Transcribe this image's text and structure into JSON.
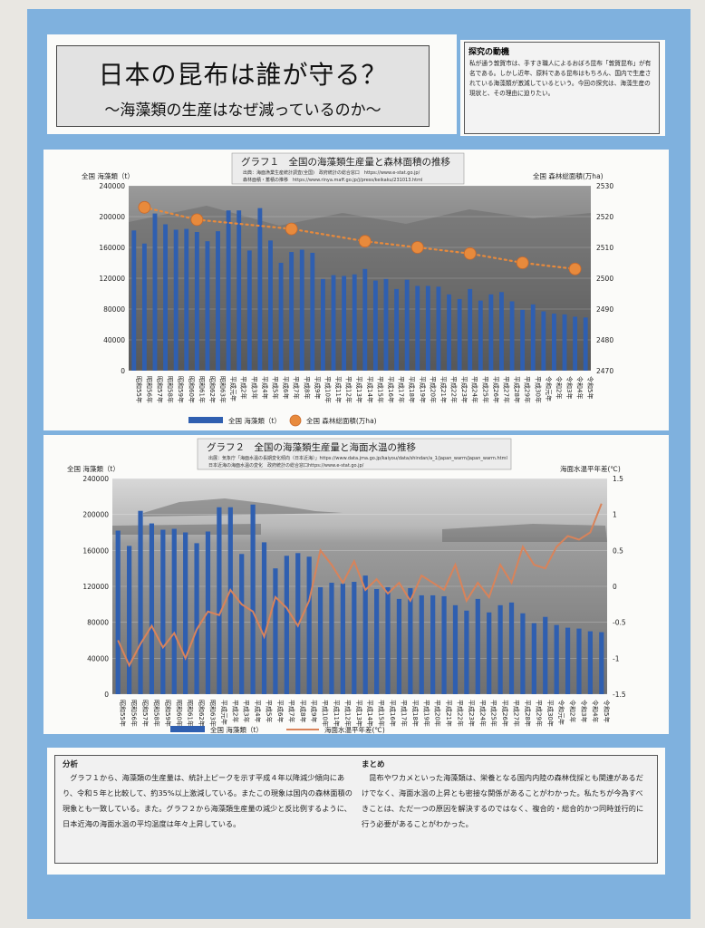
{
  "title": {
    "main": "日本の昆布は誰が守る？",
    "sub": "〜海藻類の生産はなぜ減っているのか〜"
  },
  "motive": {
    "heading": "探究の動機",
    "body": "私が通う敦賀市は、手すき職人によるおぼろ昆布「敦賀昆布」が有名である。しかし近年、原料である昆布はもちろん、国内で生産されている海藻類が激減しているという。今回の探究は、海藻生産の現状と、その理由に迫りたい。"
  },
  "categories": [
    "昭和55年",
    "昭和56年",
    "昭和57年",
    "昭和58年",
    "昭和59年",
    "昭和60年",
    "昭和61年",
    "昭和62年",
    "昭和63年",
    "平成元年",
    "平成2年",
    "平成3年",
    "平成4年",
    "平成5年",
    "平成6年",
    "平成7年",
    "平成8年",
    "平成9年",
    "平成10年",
    "平成11年",
    "平成12年",
    "平成13年",
    "平成14年",
    "平成15年",
    "平成16年",
    "平成17年",
    "平成18年",
    "平成19年",
    "平成20年",
    "平成21年",
    "平成22年",
    "平成23年",
    "平成24年",
    "平成25年",
    "平成26年",
    "平成27年",
    "平成28年",
    "平成29年",
    "平成30年",
    "令和元年",
    "令和2年",
    "令和3年",
    "令和4年",
    "令和5年"
  ],
  "chart_data": [
    {
      "type": "bar",
      "title": "グラフ１　全国の海藻類生産量と森林面積の推移",
      "source_lines": [
        "出典：海面漁業生産統計調査(全国)　政府統計の総合窓口　https://www.e-stat.go.jp/",
        "森林面積・蓄積の推移　https://www.rinya.maff.go.jp/j/press/keikaku/231013.html"
      ],
      "ylabel_left": "全国 海藻類（t）",
      "ylabel_right": "全国 森林総面積(万ha)",
      "ylim_left": [
        0,
        240000
      ],
      "ylim_right": [
        2470,
        2530
      ],
      "yticks_left": [
        "0",
        "40000",
        "80000",
        "120000",
        "160000",
        "200000",
        "240000"
      ],
      "yticks_right": [
        "2470",
        "2480",
        "2490",
        "2500",
        "2510",
        "2520",
        "2530"
      ],
      "series": [
        {
          "name": "全国 海藻類（t）",
          "kind": "bar",
          "color": "#2f5fb0",
          "values": [
            182000,
            165000,
            204000,
            190000,
            183000,
            184000,
            180000,
            168000,
            181000,
            208000,
            208000,
            156000,
            211000,
            169000,
            140000,
            154000,
            157000,
            153000,
            119000,
            124000,
            123000,
            125000,
            132000,
            117000,
            119000,
            106000,
            118000,
            110000,
            110000,
            109000,
            99000,
            93000,
            106000,
            91000,
            99000,
            102000,
            90000,
            79000,
            86000,
            77000,
            74000,
            73000,
            70000,
            69000
          ]
        },
        {
          "name": "全国 森林総面積(万ha)",
          "kind": "point",
          "color": "#e88a3c",
          "points": [
            {
              "x": "昭和56年",
              "y": 2523
            },
            {
              "x": "昭和61年",
              "y": 2519
            },
            {
              "x": "平成7年",
              "y": 2516
            },
            {
              "x": "平成14年",
              "y": 2512
            },
            {
              "x": "平成19年",
              "y": 2510
            },
            {
              "x": "平成24年",
              "y": 2508
            },
            {
              "x": "平成29年",
              "y": 2505
            },
            {
              "x": "令和4年",
              "y": 2503
            }
          ]
        }
      ],
      "legend": [
        "全国 海藻類（t）",
        "全国 森林総面積(万ha)"
      ],
      "colors": {
        "bar": "#2f5fb0",
        "trend": "#e88a3c"
      }
    },
    {
      "type": "bar",
      "title": "グラフ２　全国の海藻類生産量と海面水温の推移",
      "source_lines": [
        "出展：気象庁「海面水温の長期変化傾向（日本近海）」https://www.data.jma.go.jp/kaiyou/data/shindan/a_1/japan_warm/japan_warm.html",
        "日本近海の海面水温の変化　政府統計の総合窓口https://www.e-stat.go.jp/"
      ],
      "ylabel_left": "全国 海藻類（t）",
      "ylabel_right": "海面水温平年差(℃)",
      "ylim_left": [
        0,
        240000
      ],
      "ylim_right": [
        -1.5,
        1.5
      ],
      "yticks_left": [
        "0",
        "40000",
        "80000",
        "120000",
        "160000",
        "200000",
        "240000"
      ],
      "yticks_right": [
        "-1.5",
        "-1",
        "-0.5",
        "0",
        "0.5",
        "1",
        "1.5"
      ],
      "series": [
        {
          "name": "全国 海藻類（t）",
          "kind": "bar",
          "color": "#2f5fb0",
          "values": [
            182000,
            165000,
            204000,
            190000,
            183000,
            184000,
            180000,
            168000,
            181000,
            208000,
            208000,
            156000,
            211000,
            169000,
            140000,
            154000,
            157000,
            153000,
            119000,
            124000,
            123000,
            125000,
            132000,
            117000,
            119000,
            106000,
            118000,
            110000,
            110000,
            109000,
            99000,
            93000,
            106000,
            91000,
            99000,
            102000,
            90000,
            79000,
            86000,
            77000,
            74000,
            73000,
            70000,
            69000
          ]
        },
        {
          "name": "海面水温平年差(℃)",
          "kind": "line",
          "color": "#d9835a",
          "values": [
            -0.75,
            -1.1,
            -0.8,
            -0.55,
            -0.85,
            -0.65,
            -1.0,
            -0.6,
            -0.35,
            -0.4,
            -0.05,
            -0.25,
            -0.35,
            -0.7,
            -0.15,
            -0.3,
            -0.55,
            -0.2,
            0.5,
            0.3,
            0.05,
            0.35,
            -0.05,
            0.1,
            -0.1,
            0.05,
            -0.2,
            0.15,
            0.05,
            -0.05,
            0.3,
            -0.2,
            0.05,
            -0.15,
            0.3,
            0.05,
            0.55,
            0.3,
            0.25,
            0.55,
            0.7,
            0.65,
            0.75,
            1.15
          ]
        }
      ],
      "legend": [
        "全国 海藻類（t）",
        "海面水温平年差(℃)"
      ],
      "colors": {
        "bar": "#2f5fb0",
        "trend": "#d9835a"
      }
    }
  ],
  "analysis": {
    "heading": "分析",
    "body": "　グラフ１から、海藻類の生産量は、統計上ピークを示す平成４年以降減少傾向にあり、令和５年と比較して、約35%以上激減している。またこの現象は国内の森林面積の現象とも一致している。また。グラフ２から海藻類生産量の減少と反比例するように、日本近海の海面水温の平均温度は年々上昇している。"
  },
  "summary": {
    "heading": "まとめ",
    "body": "　昆布やワカメといった海藻類は、栄養となる国内内陸の森林伐採とも関連があるだけでなく、海面水温の上昇とも密接な関係があることがわかった。私たちが今為すべきことは、ただ一つの原因を解決するのではなく、複合的・総合的かつ同時並行的に行う必要があることがわかった。"
  }
}
